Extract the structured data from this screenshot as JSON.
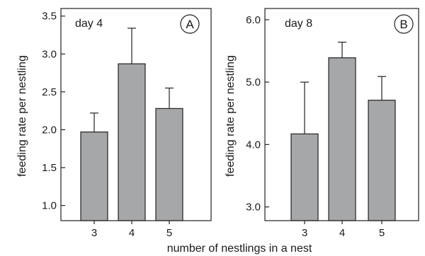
{
  "chart_data": [
    {
      "type": "bar",
      "panel_label": "A",
      "title": "day 4",
      "xlabel": "number of nestlings in a nest",
      "ylabel": "feeding rate per nestling",
      "categories": [
        "3",
        "4",
        "5"
      ],
      "values": [
        1.97,
        2.87,
        2.28
      ],
      "error_upper": [
        2.22,
        3.34,
        2.55
      ],
      "ylim": [
        0.8,
        3.6
      ],
      "yticks": [
        "1.0",
        "1.5",
        "2.0",
        "2.5",
        "3.0",
        "3.5"
      ],
      "grid": false,
      "bar_color": "#a6a7a9"
    },
    {
      "type": "bar",
      "panel_label": "B",
      "title": "day 8",
      "xlabel": "number of nestlings in a nest",
      "ylabel": "feeding rate per nestling",
      "categories": [
        "3",
        "4",
        "5"
      ],
      "values": [
        4.17,
        5.39,
        4.71
      ],
      "error_upper": [
        5.0,
        5.64,
        5.09
      ],
      "ylim": [
        2.78,
        6.18
      ],
      "yticks": [
        "3.0",
        "4.0",
        "5.0",
        "6.0"
      ],
      "grid": false,
      "bar_color": "#a6a7a9"
    }
  ],
  "shared_xlabel": "number of nestlings in a nest"
}
